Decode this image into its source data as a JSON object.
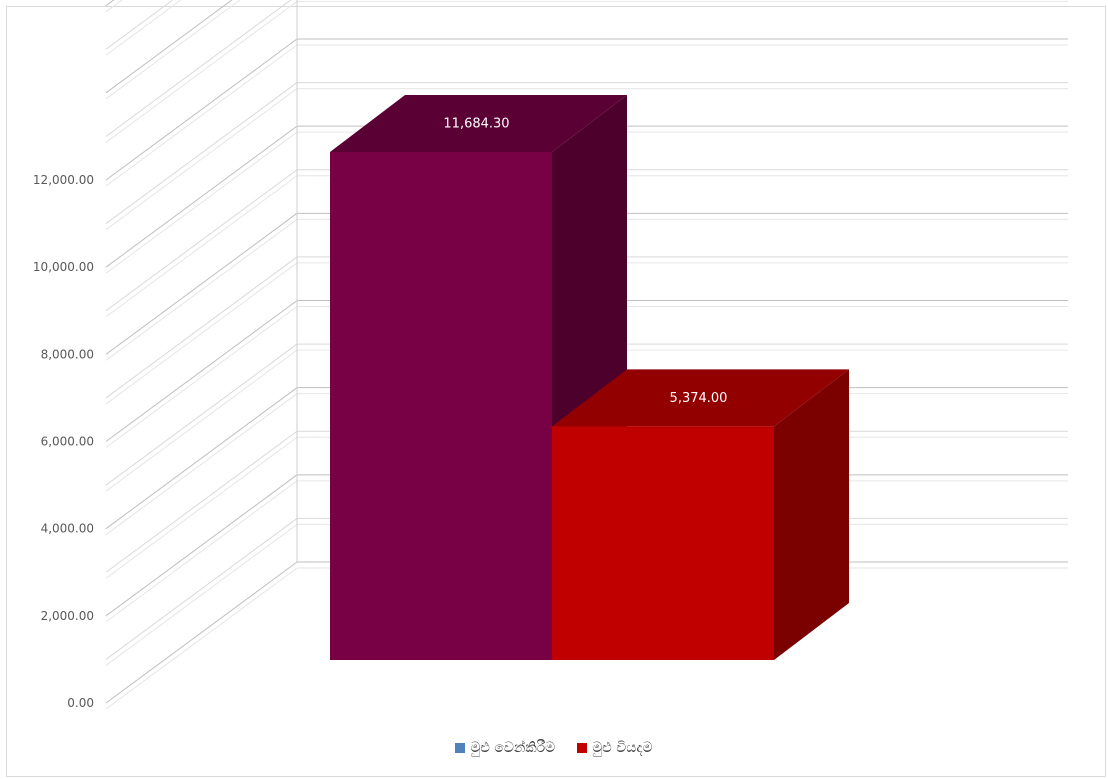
{
  "chart_data": {
    "type": "bar",
    "title": "",
    "xlabel": "",
    "ylabel": "",
    "ylim": [
      0,
      12000
    ],
    "yticks": [
      0,
      2000,
      4000,
      6000,
      8000,
      10000,
      12000
    ],
    "ytick_labels": [
      "0.00",
      "2,000.00",
      "4,000.00",
      "6,000.00",
      "8,000.00",
      "10,000.00",
      "12,000.00"
    ],
    "grid": true,
    "legend_position": "bottom",
    "series": [
      {
        "name": "මුළු වෙන්කිරීම",
        "value": 11684.3,
        "label": "11,684.30",
        "color": "#780045",
        "legend_color": "#4f81bd"
      },
      {
        "name": "මුළු වියදම",
        "value": 5374.0,
        "label": "5,374.00",
        "color": "#c00000",
        "legend_color": "#c00000"
      }
    ]
  }
}
